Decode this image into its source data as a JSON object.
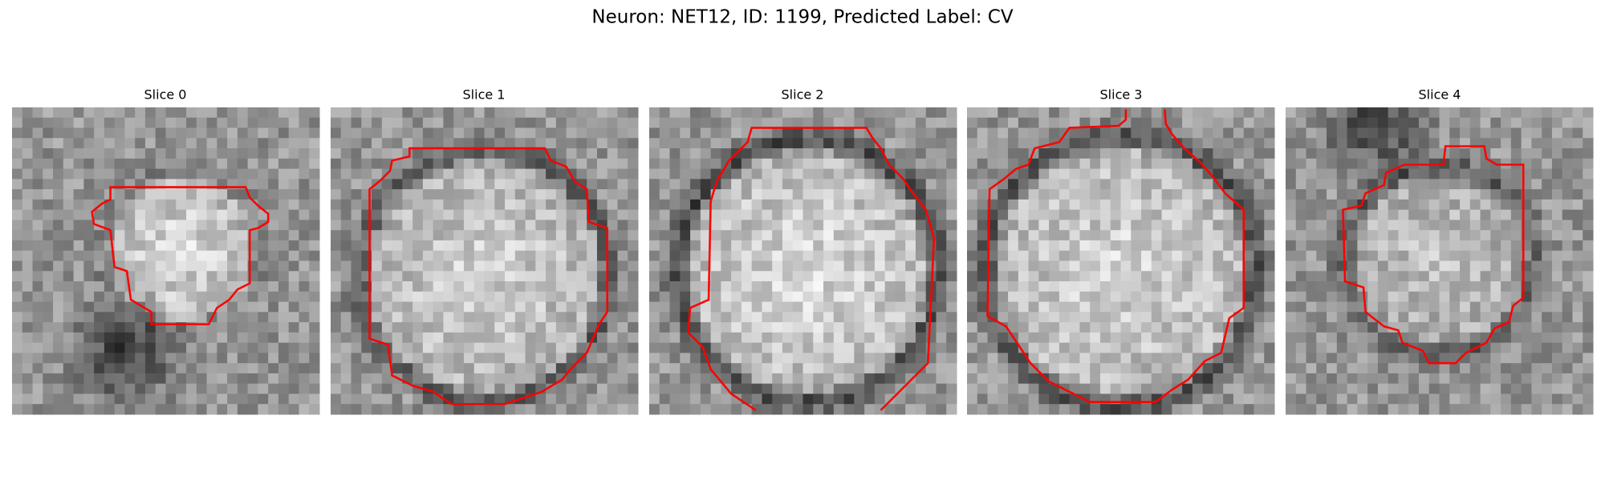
{
  "title": "Neuron: NET12, ID: 1199, Predicted Label: CV",
  "panels": [
    {
      "title": "Slice 0"
    },
    {
      "title": "Slice 1"
    },
    {
      "title": "Slice 2"
    },
    {
      "title": "Slice 3"
    },
    {
      "title": "Slice 4"
    }
  ]
}
